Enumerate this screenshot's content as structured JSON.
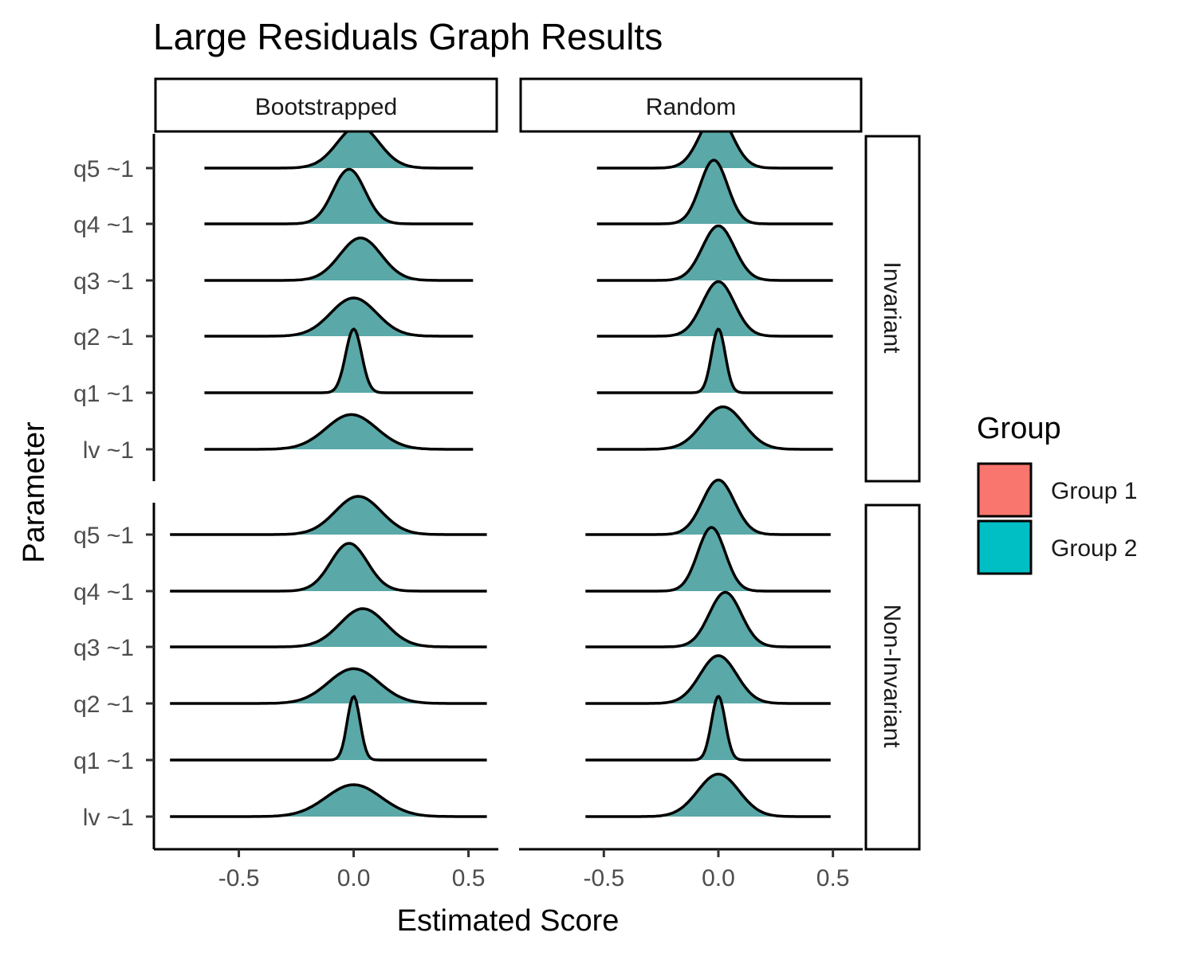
{
  "chart_data": {
    "type": "ridgeline",
    "title": "Large Residuals Graph Results",
    "xlabel": "Estimated Score",
    "ylabel": "Parameter",
    "column_facets": [
      "Bootstrapped",
      "Random"
    ],
    "row_facets": [
      "Invariant",
      "Non-Invariant"
    ],
    "parameters": [
      "q5 ~1",
      "q4 ~1",
      "q3 ~1",
      "q2 ~1",
      "q1 ~1",
      "lv ~1"
    ],
    "x_ticks": [
      "-0.5",
      "0.0",
      "0.5"
    ],
    "x_tick_values": [
      -0.5,
      0.0,
      0.5
    ],
    "legend": {
      "title": "Group",
      "position": "right",
      "entries": [
        {
          "label": "Group 1",
          "color": "#F8766D"
        },
        {
          "label": "Group 2",
          "color": "#00BFC4"
        }
      ]
    },
    "colors": {
      "group1": "#F8766D",
      "group2": "#00BFC4",
      "overlap": "#5AA8A8",
      "outline": "#000000"
    },
    "panels": [
      {
        "row": "Invariant",
        "col": "Bootstrapped",
        "xlim": [
          -0.87,
          0.63
        ],
        "densities": [
          {
            "parameter": "q5 ~1",
            "range": [
              -0.65,
              0.52
            ],
            "mean": 0.02,
            "sd": 0.09
          },
          {
            "parameter": "q4 ~1",
            "range": [
              -0.65,
              0.52
            ],
            "mean": -0.02,
            "sd": 0.07
          },
          {
            "parameter": "q3 ~1",
            "range": [
              -0.65,
              0.52
            ],
            "mean": 0.03,
            "sd": 0.09
          },
          {
            "parameter": "q2 ~1",
            "range": [
              -0.65,
              0.52
            ],
            "mean": 0.0,
            "sd": 0.1
          },
          {
            "parameter": "q1 ~1",
            "range": [
              -0.65,
              0.52
            ],
            "mean": 0.0,
            "sd": 0.035
          },
          {
            "parameter": "lv ~1",
            "range": [
              -0.65,
              0.52
            ],
            "mean": -0.01,
            "sd": 0.11
          }
        ]
      },
      {
        "row": "Invariant",
        "col": "Random",
        "xlim": [
          -0.87,
          0.63
        ],
        "densities": [
          {
            "parameter": "q5 ~1",
            "range": [
              -0.53,
              0.5
            ],
            "mean": -0.01,
            "sd": 0.07
          },
          {
            "parameter": "q4 ~1",
            "range": [
              -0.53,
              0.5
            ],
            "mean": -0.02,
            "sd": 0.06
          },
          {
            "parameter": "q3 ~1",
            "range": [
              -0.53,
              0.5
            ],
            "mean": 0.0,
            "sd": 0.07
          },
          {
            "parameter": "q2 ~1",
            "range": [
              -0.53,
              0.5
            ],
            "mean": 0.0,
            "sd": 0.07
          },
          {
            "parameter": "q1 ~1",
            "range": [
              -0.53,
              0.5
            ],
            "mean": 0.0,
            "sd": 0.03
          },
          {
            "parameter": "lv ~1",
            "range": [
              -0.53,
              0.5
            ],
            "mean": 0.02,
            "sd": 0.09
          }
        ]
      },
      {
        "row": "Non-Invariant",
        "col": "Bootstrapped",
        "xlim": [
          -0.87,
          0.63
        ],
        "densities": [
          {
            "parameter": "q5 ~1",
            "range": [
              -0.8,
              0.58
            ],
            "mean": 0.02,
            "sd": 0.1
          },
          {
            "parameter": "q4 ~1",
            "range": [
              -0.8,
              0.58
            ],
            "mean": -0.02,
            "sd": 0.08
          },
          {
            "parameter": "q3 ~1",
            "range": [
              -0.8,
              0.58
            ],
            "mean": 0.04,
            "sd": 0.1
          },
          {
            "parameter": "q2 ~1",
            "range": [
              -0.8,
              0.58
            ],
            "mean": 0.0,
            "sd": 0.11
          },
          {
            "parameter": "q1 ~1",
            "range": [
              -0.8,
              0.58
            ],
            "mean": 0.0,
            "sd": 0.028
          },
          {
            "parameter": "lv ~1",
            "range": [
              -0.8,
              0.58
            ],
            "mean": 0.0,
            "sd": 0.12
          }
        ]
      },
      {
        "row": "Non-Invariant",
        "col": "Random",
        "xlim": [
          -0.87,
          0.63
        ],
        "densities": [
          {
            "parameter": "q5 ~1",
            "range": [
              -0.58,
              0.49
            ],
            "mean": 0.0,
            "sd": 0.07
          },
          {
            "parameter": "q4 ~1",
            "range": [
              -0.58,
              0.49
            ],
            "mean": -0.03,
            "sd": 0.06
          },
          {
            "parameter": "q3 ~1",
            "range": [
              -0.58,
              0.49
            ],
            "mean": 0.03,
            "sd": 0.07
          },
          {
            "parameter": "q2 ~1",
            "range": [
              -0.58,
              0.49
            ],
            "mean": 0.0,
            "sd": 0.08
          },
          {
            "parameter": "q1 ~1",
            "range": [
              -0.58,
              0.49
            ],
            "mean": 0.0,
            "sd": 0.03
          },
          {
            "parameter": "lv ~1",
            "range": [
              -0.58,
              0.49
            ],
            "mean": 0.0,
            "sd": 0.09
          }
        ]
      }
    ]
  }
}
